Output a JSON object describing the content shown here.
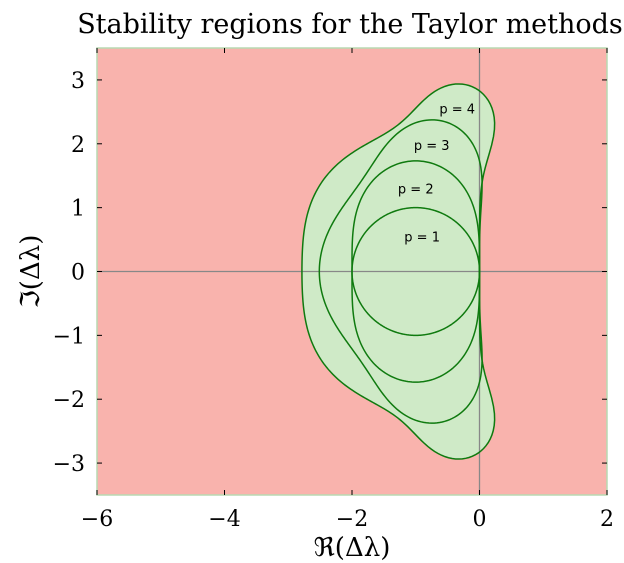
{
  "chart_data": {
    "type": "area",
    "title": "Stability regions for the Taylor methods",
    "xlabel": "ℜ(Δλ)",
    "ylabel": "ℑ(Δλ)",
    "xlim": [
      -6,
      2
    ],
    "ylim": [
      -3.5,
      3.5
    ],
    "xticks": [
      -6,
      -4,
      -2,
      0,
      2
    ],
    "yticks": [
      -3,
      -2,
      -1,
      0,
      1,
      2,
      3
    ],
    "xtick_labels": [
      "−6",
      "−4",
      "−2",
      "0",
      "2"
    ],
    "ytick_labels": [
      "−3",
      "−2",
      "−1",
      "0",
      "1",
      "2",
      "3"
    ],
    "grid": false,
    "axis_lines_through_origin": true,
    "colors": {
      "unstable_region": "#f9b3ad",
      "stable_region": "#cfeac7",
      "boundary": "#0f7a0f",
      "axis_lines": "#888888",
      "frame": "#b8d9b2"
    },
    "series": [
      {
        "name": "p = 1",
        "order": 1
      },
      {
        "name": "p = 2",
        "order": 2
      },
      {
        "name": "p = 3",
        "order": 3
      },
      {
        "name": "p = 4",
        "order": 4
      }
    ],
    "annotations": [
      {
        "text": "p = 1",
        "x": -0.9,
        "y": 0.55
      },
      {
        "text": "p = 2",
        "x": -1.0,
        "y": 1.3
      },
      {
        "text": "p = 3",
        "x": -0.75,
        "y": 1.98
      },
      {
        "text": "p = 4",
        "x": -0.35,
        "y": 2.55
      }
    ]
  }
}
